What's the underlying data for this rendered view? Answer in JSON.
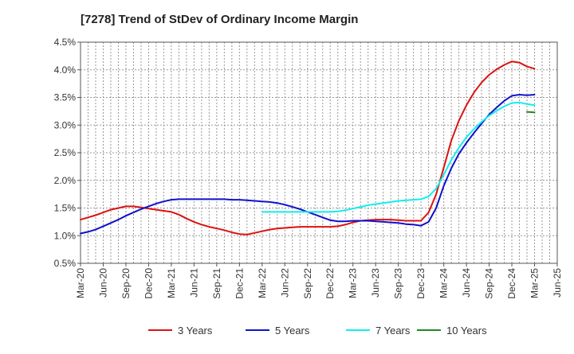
{
  "chart_data": {
    "type": "line",
    "title": "[7278]  Trend of StDev of Ordinary Income Margin",
    "xlabel": "",
    "ylabel": "",
    "ylim": [
      0.5,
      4.5
    ],
    "y_ticks": [
      0.5,
      1.0,
      1.5,
      2.0,
      2.5,
      3.0,
      3.5,
      4.0,
      4.5
    ],
    "y_tick_labels": [
      "0.5%",
      "1.0%",
      "1.5%",
      "2.0%",
      "2.5%",
      "3.0%",
      "3.5%",
      "4.0%",
      "4.5%"
    ],
    "x_ticks": [
      "Mar-20",
      "Jun-20",
      "Sep-20",
      "Dec-20",
      "Mar-21",
      "Jun-21",
      "Sep-21",
      "Dec-21",
      "Mar-22",
      "Jun-22",
      "Sep-22",
      "Dec-22",
      "Mar-23",
      "Jun-23",
      "Sep-23",
      "Dec-23",
      "Mar-24",
      "Jun-24",
      "Sep-24",
      "Dec-24",
      "Mar-25",
      "Jun-25"
    ],
    "grid": true,
    "legend_position": "bottom",
    "series": [
      {
        "name": "3 Years",
        "color": "#dd1111",
        "x": [
          "Mar-20",
          "Apr-20",
          "May-20",
          "Jun-20",
          "Jul-20",
          "Aug-20",
          "Sep-20",
          "Oct-20",
          "Nov-20",
          "Dec-20",
          "Jan-21",
          "Feb-21",
          "Mar-21",
          "Apr-21",
          "May-21",
          "Jun-21",
          "Jul-21",
          "Aug-21",
          "Sep-21",
          "Oct-21",
          "Nov-21",
          "Dec-21",
          "Jan-22",
          "Feb-22",
          "Mar-22",
          "Apr-22",
          "May-22",
          "Jun-22",
          "Jul-22",
          "Aug-22",
          "Sep-22",
          "Oct-22",
          "Nov-22",
          "Dec-22",
          "Jan-23",
          "Feb-23",
          "Mar-23",
          "Apr-23",
          "May-23",
          "Jun-23",
          "Jul-23",
          "Aug-23",
          "Sep-23",
          "Oct-23",
          "Nov-23",
          "Dec-23",
          "Jan-24",
          "Feb-24",
          "Mar-24",
          "Apr-24",
          "May-24",
          "Jun-24",
          "Jul-24",
          "Aug-24",
          "Sep-24",
          "Oct-24",
          "Nov-24",
          "Dec-24",
          "Jan-25",
          "Feb-25",
          "Mar-25"
        ],
        "values": [
          1.29,
          1.33,
          1.37,
          1.42,
          1.47,
          1.5,
          1.53,
          1.53,
          1.51,
          1.49,
          1.47,
          1.45,
          1.43,
          1.38,
          1.31,
          1.25,
          1.2,
          1.16,
          1.13,
          1.1,
          1.06,
          1.03,
          1.02,
          1.05,
          1.08,
          1.11,
          1.13,
          1.14,
          1.15,
          1.16,
          1.16,
          1.16,
          1.16,
          1.16,
          1.17,
          1.2,
          1.24,
          1.27,
          1.28,
          1.29,
          1.29,
          1.29,
          1.28,
          1.27,
          1.27,
          1.27,
          1.42,
          1.75,
          2.23,
          2.72,
          3.08,
          3.36,
          3.59,
          3.77,
          3.91,
          4.01,
          4.09,
          4.15,
          4.13,
          4.06,
          4.02
        ]
      },
      {
        "name": "5 Years",
        "color": "#1111cc",
        "x": [
          "Mar-20",
          "Apr-20",
          "May-20",
          "Jun-20",
          "Jul-20",
          "Aug-20",
          "Sep-20",
          "Oct-20",
          "Nov-20",
          "Dec-20",
          "Jan-21",
          "Feb-21",
          "Mar-21",
          "Apr-21",
          "May-21",
          "Jun-21",
          "Jul-21",
          "Aug-21",
          "Sep-21",
          "Oct-21",
          "Nov-21",
          "Dec-21",
          "Jan-22",
          "Feb-22",
          "Mar-22",
          "Apr-22",
          "May-22",
          "Jun-22",
          "Jul-22",
          "Aug-22",
          "Sep-22",
          "Oct-22",
          "Nov-22",
          "Dec-22",
          "Jan-23",
          "Feb-23",
          "Mar-23",
          "Apr-23",
          "May-23",
          "Jun-23",
          "Jul-23",
          "Aug-23",
          "Sep-23",
          "Oct-23",
          "Nov-23",
          "Dec-23",
          "Jan-24",
          "Feb-24",
          "Mar-24",
          "Apr-24",
          "May-24",
          "Jun-24",
          "Jul-24",
          "Aug-24",
          "Sep-24",
          "Oct-24",
          "Nov-24",
          "Dec-24",
          "Jan-25",
          "Feb-25",
          "Mar-25"
        ],
        "values": [
          1.04,
          1.07,
          1.11,
          1.17,
          1.23,
          1.29,
          1.36,
          1.42,
          1.48,
          1.53,
          1.58,
          1.62,
          1.65,
          1.66,
          1.66,
          1.66,
          1.66,
          1.66,
          1.66,
          1.66,
          1.65,
          1.65,
          1.64,
          1.63,
          1.62,
          1.61,
          1.59,
          1.56,
          1.52,
          1.48,
          1.43,
          1.38,
          1.33,
          1.28,
          1.26,
          1.26,
          1.27,
          1.27,
          1.27,
          1.26,
          1.25,
          1.24,
          1.23,
          1.21,
          1.2,
          1.18,
          1.25,
          1.5,
          1.9,
          2.22,
          2.48,
          2.68,
          2.86,
          3.03,
          3.19,
          3.32,
          3.44,
          3.53,
          3.55,
          3.54,
          3.55
        ]
      },
      {
        "name": "7 Years",
        "color": "#11eeee",
        "x": [
          "Mar-22",
          "Apr-22",
          "May-22",
          "Jun-22",
          "Jul-22",
          "Aug-22",
          "Sep-22",
          "Oct-22",
          "Nov-22",
          "Dec-22",
          "Jan-23",
          "Feb-23",
          "Mar-23",
          "Apr-23",
          "May-23",
          "Jun-23",
          "Jul-23",
          "Aug-23",
          "Sep-23",
          "Oct-23",
          "Nov-23",
          "Dec-23",
          "Jan-24",
          "Feb-24",
          "Mar-24",
          "Apr-24",
          "May-24",
          "Jun-24",
          "Jul-24",
          "Aug-24",
          "Sep-24",
          "Oct-24",
          "Nov-24",
          "Dec-24",
          "Jan-25",
          "Feb-25",
          "Mar-25"
        ],
        "values": [
          1.43,
          1.43,
          1.43,
          1.43,
          1.43,
          1.43,
          1.43,
          1.43,
          1.43,
          1.43,
          1.44,
          1.46,
          1.49,
          1.52,
          1.55,
          1.57,
          1.59,
          1.61,
          1.63,
          1.64,
          1.65,
          1.66,
          1.71,
          1.85,
          2.1,
          2.37,
          2.59,
          2.78,
          2.93,
          3.06,
          3.17,
          3.26,
          3.34,
          3.4,
          3.41,
          3.38,
          3.36
        ]
      },
      {
        "name": "10 Years",
        "color": "#228822",
        "x": [
          "Feb-25",
          "Mar-25"
        ],
        "values": [
          3.24,
          3.23
        ]
      }
    ]
  }
}
